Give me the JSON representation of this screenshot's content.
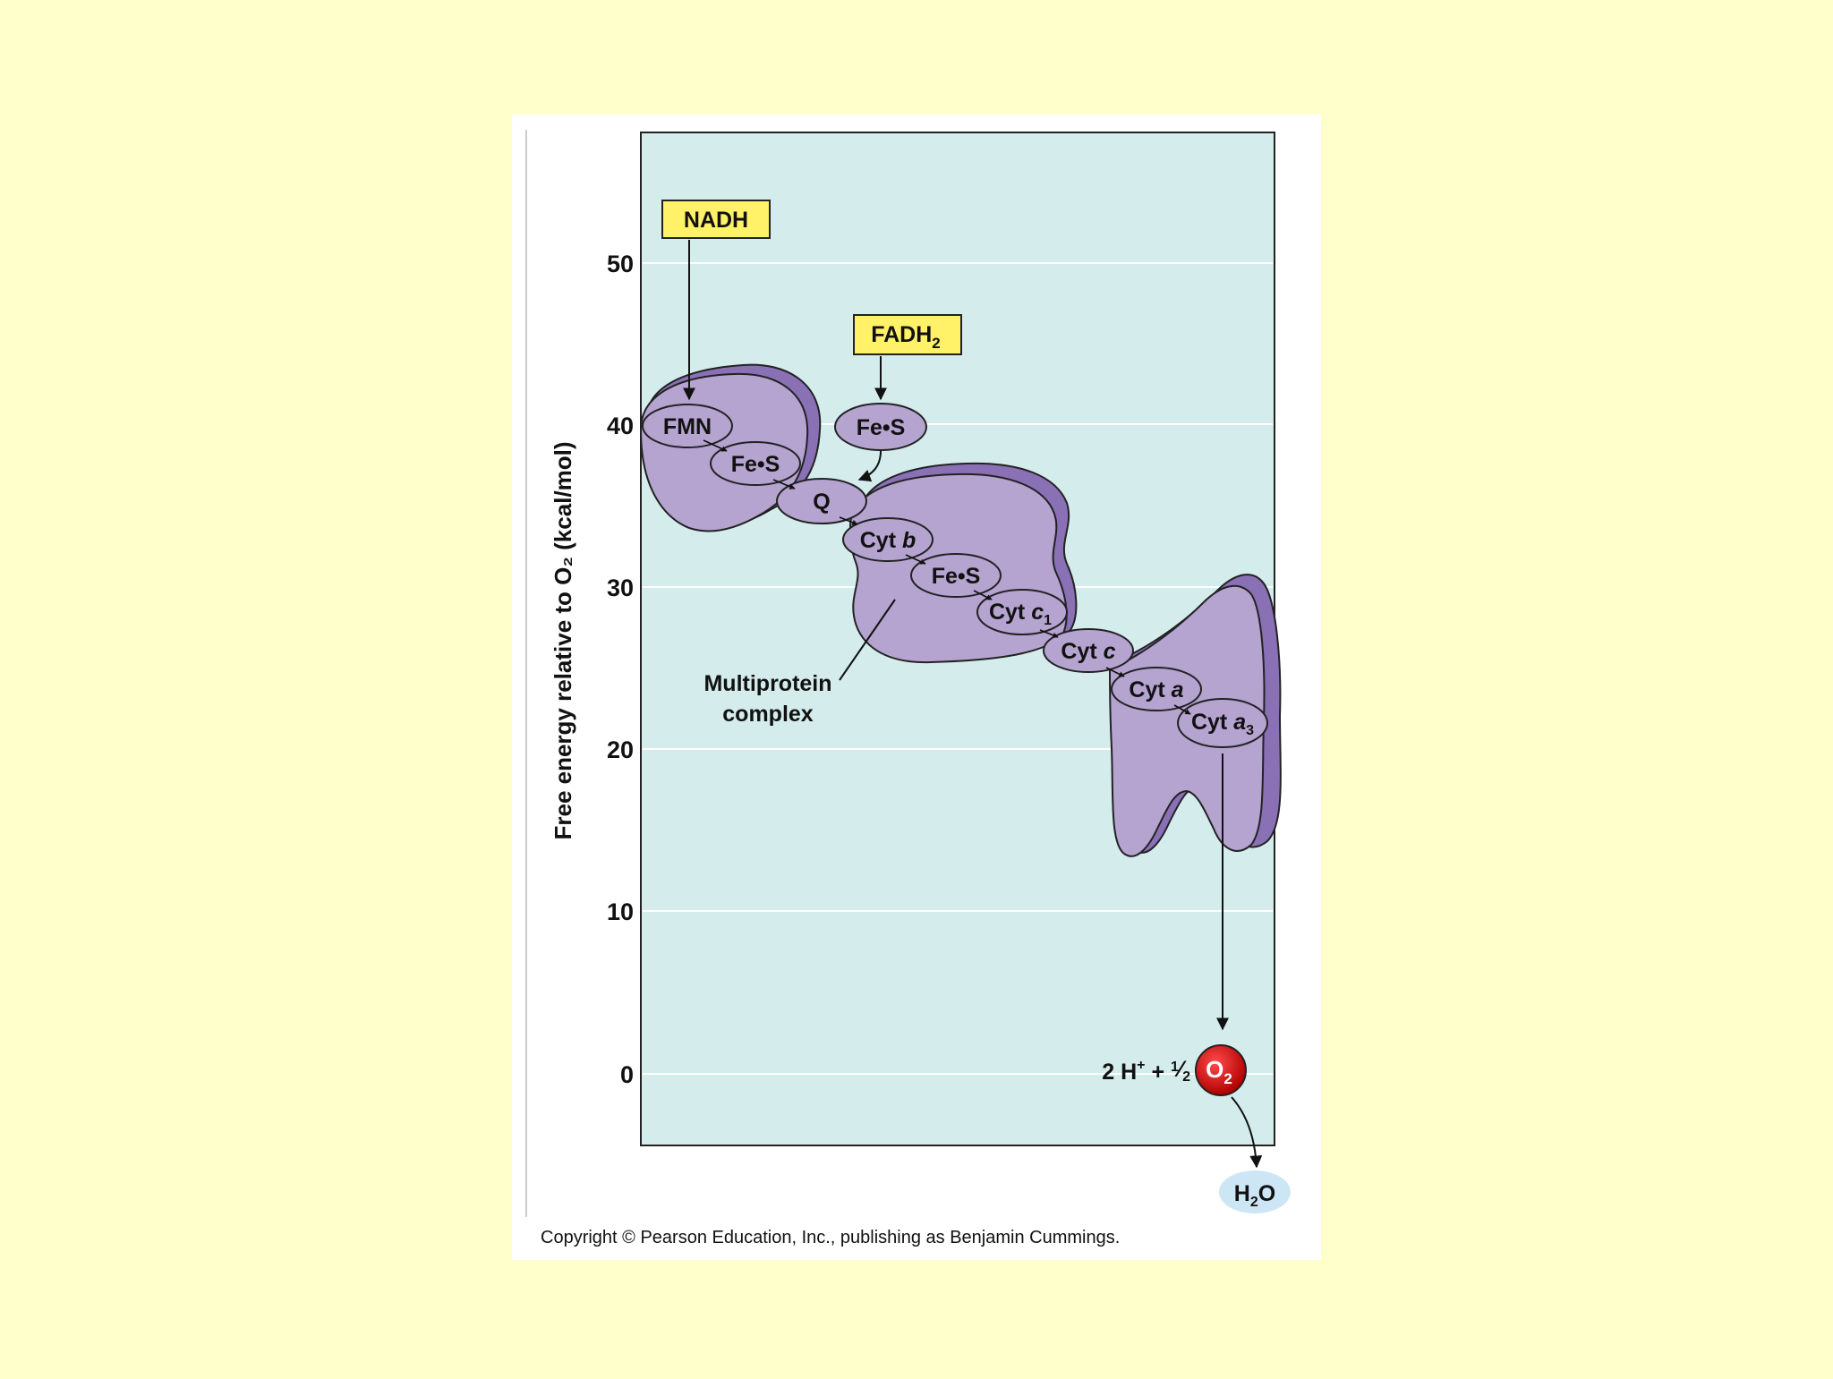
{
  "figure": {
    "y_axis_label": "Free energy relative to O₂ (kcal/mol)",
    "y_ticks": [
      "50",
      "40",
      "30",
      "20",
      "10",
      "0"
    ],
    "copyright": "Copyright © Pearson Education, Inc., publishing as Benjamin Cummings."
  },
  "donors": {
    "nadh": "NADH",
    "fadh2_main": "FADH",
    "fadh2_sub": "2"
  },
  "carriers": {
    "fmn": "FMN",
    "fes_1": "Fe•S",
    "fes_fadh": "Fe•S",
    "q": "Q",
    "cyt_b_main": "Cyt ",
    "cyt_b_italic": "b",
    "fes_2": "Fe•S",
    "cyt_c1_main": "Cyt ",
    "cyt_c1_italic": "c",
    "cyt_c1_sub": "1",
    "cyt_c_main": "Cyt ",
    "cyt_c_italic": "c",
    "cyt_a_main": "Cyt ",
    "cyt_a_italic": "a",
    "cyt_a3_main": "Cyt ",
    "cyt_a3_italic": "a",
    "cyt_a3_sub": "3"
  },
  "complex_label": {
    "line1": "Multiprotein",
    "line2": "complex"
  },
  "acceptor": {
    "prefix": "2 H",
    "h_sup": "+",
    "plus": " + ",
    "frac_num": "1",
    "frac_slash": "⁄",
    "frac_den": "2",
    "o2_main": "O",
    "o2_sub": "2",
    "product_main": "H",
    "product_sub": "2",
    "product_end": "O"
  },
  "colors": {
    "page_bg": "#FFFFCC",
    "plot_bg": "#D5ECEC",
    "protein_fill": "#B5A3D0",
    "protein_shadow": "#8A70B5",
    "donor_box": "#FFF168",
    "oxygen": "#D90000",
    "water": "#CDE6F5"
  }
}
